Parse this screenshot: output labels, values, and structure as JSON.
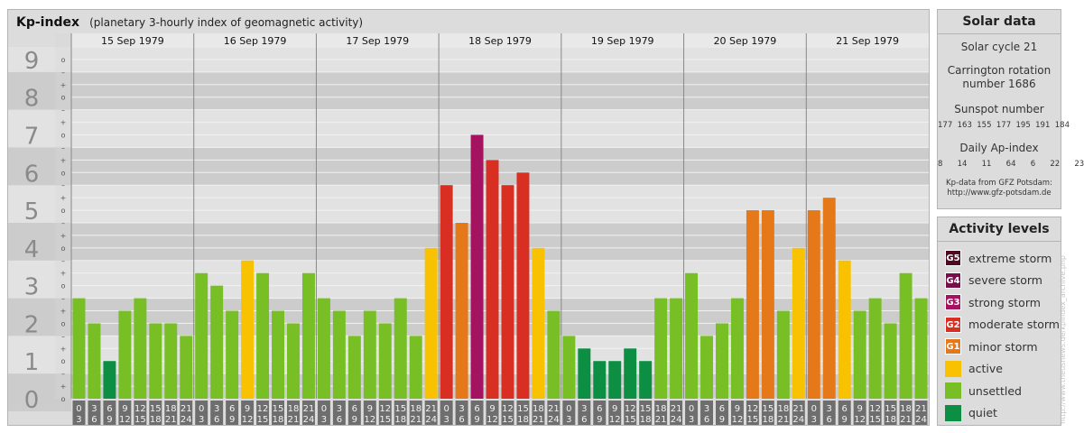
{
  "header": {
    "title": "Kp-index",
    "subtitle": "(planetary 3-hourly index of geomagnetic activity)"
  },
  "chart_data": {
    "type": "bar",
    "ylim": [
      0,
      9
    ],
    "y_ticks": [
      "0",
      "1",
      "2",
      "3",
      "4",
      "5",
      "6",
      "7",
      "8",
      "9"
    ],
    "minor_tick_labels": [
      "o",
      "+",
      "–"
    ],
    "days": [
      "15 Sep 1979",
      "16 Sep 1979",
      "17 Sep 1979",
      "18 Sep 1979",
      "19 Sep 1979",
      "20 Sep 1979",
      "21 Sep 1979"
    ],
    "interval_start": [
      "0",
      "3",
      "6",
      "9",
      "12",
      "15",
      "18",
      "21"
    ],
    "interval_end": [
      "3",
      "6",
      "9",
      "12",
      "15",
      "18",
      "21",
      "24"
    ],
    "values": [
      [
        2.667,
        2.0,
        1.0,
        2.333,
        2.667,
        2.0,
        2.0,
        1.667
      ],
      [
        3.333,
        3.0,
        2.333,
        3.667,
        3.333,
        2.333,
        2.0,
        3.333
      ],
      [
        2.667,
        2.333,
        1.667,
        2.333,
        2.0,
        2.667,
        1.667,
        4.0
      ],
      [
        5.667,
        4.667,
        7.0,
        6.333,
        5.667,
        6.0,
        4.0,
        2.333
      ],
      [
        1.667,
        1.333,
        1.0,
        1.0,
        1.333,
        1.0,
        2.667,
        2.667
      ],
      [
        3.333,
        1.667,
        2.0,
        2.667,
        5.0,
        5.0,
        2.333,
        4.0
      ],
      [
        5.0,
        5.333,
        3.667,
        2.333,
        2.667,
        2.0,
        3.333,
        2.667
      ]
    ],
    "grid": true
  },
  "solar": {
    "title": "Solar data",
    "cycle": "Solar cycle 21",
    "carrington_line1": "Carrington rotation",
    "carrington_line2": "number 1686",
    "sunspot_label": "Sunspot number",
    "sunspot_values": "177  163  155  177  195  191  184",
    "ap_label": "Daily Ap-index",
    "ap_values": "8      14      11      64      6      22      23",
    "source_line1": "Kp-data from GFZ Potsdam:",
    "source_line2": "http://www.gfz-potsdam.de"
  },
  "legend": {
    "title": "Activity levels",
    "items": [
      {
        "code": "G5",
        "label": "extreme storm",
        "color": "#4d0a22"
      },
      {
        "code": "G4",
        "label": "severe storm",
        "color": "#780e4a"
      },
      {
        "code": "G3",
        "label": "strong storm",
        "color": "#a3135f"
      },
      {
        "code": "G2",
        "label": "moderate storm",
        "color": "#d92f22"
      },
      {
        "code": "G1",
        "label": "minor storm",
        "color": "#e57818"
      },
      {
        "code": "",
        "label": "active",
        "color": "#f8c200"
      },
      {
        "code": "",
        "label": "unsettled",
        "color": "#77bf24"
      },
      {
        "code": "",
        "label": "quiet",
        "color": "#0c8f42"
      }
    ]
  },
  "watermark": "http://www.theusnews.de/kpindex_archive.php"
}
